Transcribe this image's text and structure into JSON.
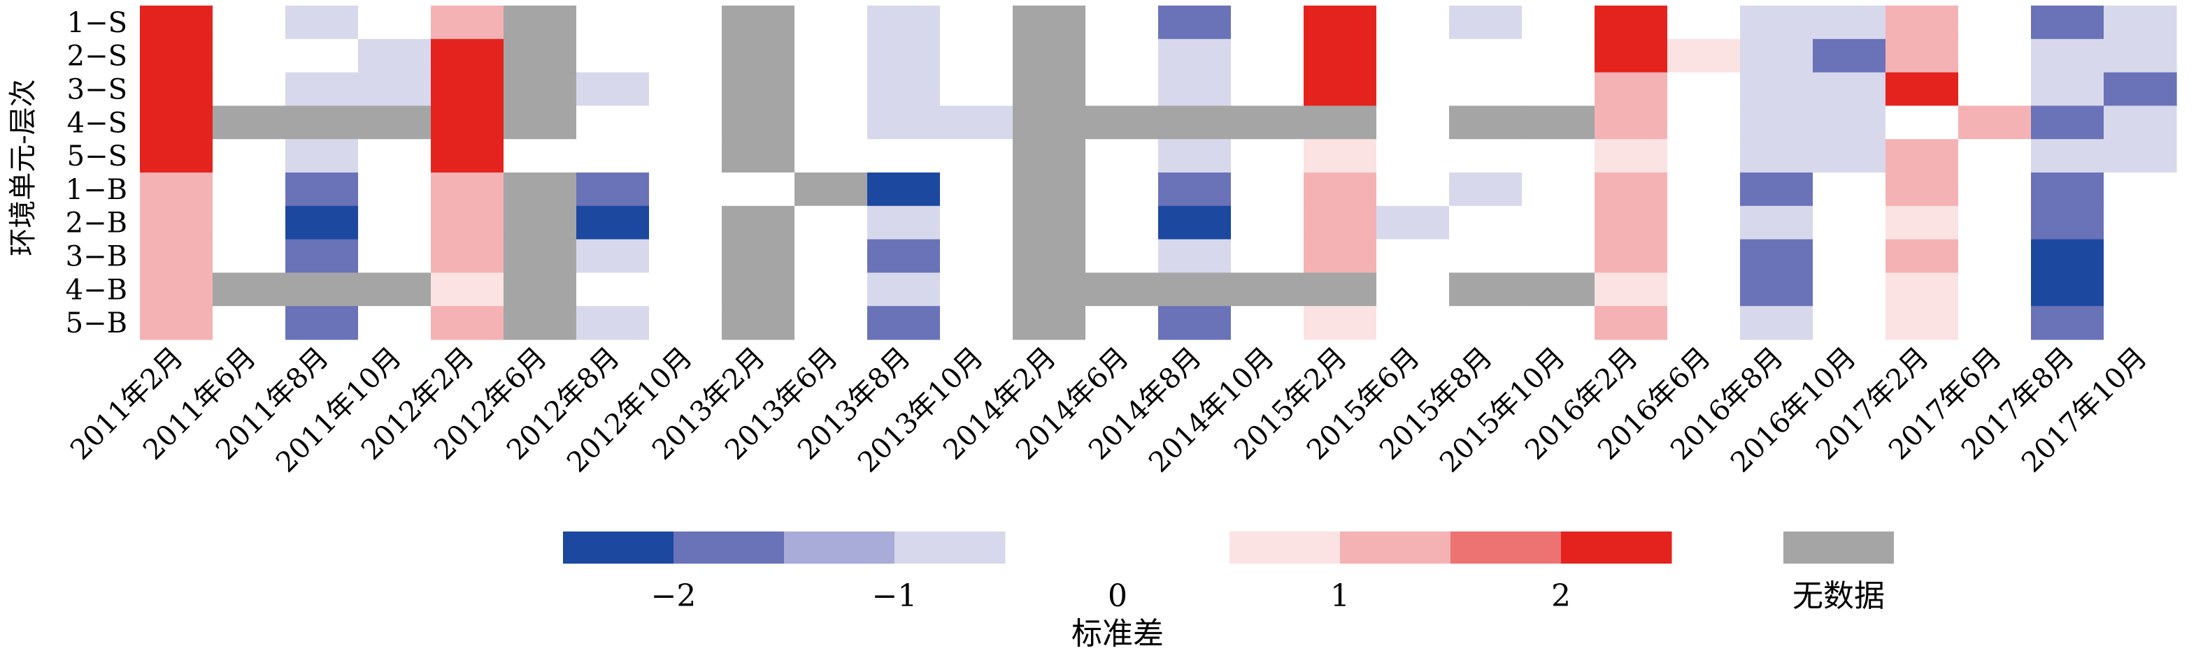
{
  "chart_data": {
    "type": "heatmap",
    "ylabel": "环境单元-层次",
    "rows": [
      "1−S",
      "2−S",
      "3−S",
      "4−S",
      "5−S",
      "1−B",
      "2−B",
      "3−B",
      "4−B",
      "5−B"
    ],
    "columns": [
      "2011年2月",
      "2011年6月",
      "2011年8月",
      "2011年10月",
      "2012年2月",
      "2012年6月",
      "2012年8月",
      "2012年10月",
      "2013年2月",
      "2013年6月",
      "2013年8月",
      "2013年10月",
      "2014年2月",
      "2014年6月",
      "2014年8月",
      "2014年10月",
      "2015年2月",
      "2015年6月",
      "2015年8月",
      "2015年10月",
      "2016年2月",
      "2016年6月",
      "2016年8月",
      "2016年10月",
      "2017年2月",
      "2017年6月",
      "2017年8月",
      "2017年10月"
    ],
    "values": [
      [
        2.5,
        0,
        -0.5,
        0,
        1.5,
        null,
        0,
        0,
        null,
        0.5,
        -0.5,
        0,
        null,
        0.5,
        -1.5,
        0,
        2.5,
        0,
        -0.5,
        0,
        2.5,
        0.5,
        -0.5,
        -0.5,
        1.5,
        0,
        -1.5,
        -0.5
      ],
      [
        2.5,
        0,
        0,
        -0.5,
        2.5,
        null,
        0,
        0,
        null,
        0.5,
        -0.5,
        0,
        null,
        0.5,
        -0.5,
        0,
        2.5,
        0,
        0,
        0.5,
        2.5,
        1.0,
        -0.5,
        -1.5,
        1.5,
        0.5,
        -0.5,
        -0.5
      ],
      [
        2.5,
        0,
        -0.5,
        -0.5,
        2.5,
        null,
        -0.5,
        0,
        null,
        0.5,
        -0.5,
        0,
        null,
        0.5,
        -0.5,
        0,
        2.5,
        0.5,
        0,
        0,
        1.5,
        0.5,
        -0.5,
        -0.5,
        2.5,
        0,
        -0.5,
        -1.5
      ],
      [
        2.5,
        null,
        null,
        null,
        2.5,
        null,
        0,
        0,
        null,
        0.5,
        -0.5,
        -0.5,
        null,
        null,
        null,
        null,
        null,
        0,
        null,
        null,
        1.5,
        0,
        -0.5,
        -0.5,
        0.5,
        1.5,
        -1.5,
        -0.5
      ],
      [
        2.5,
        0,
        -0.5,
        0,
        2.5,
        0.5,
        0,
        0,
        null,
        0,
        0,
        0,
        null,
        0,
        -0.5,
        0,
        1.0,
        0,
        0,
        0,
        1.0,
        0.5,
        -0.5,
        -0.5,
        1.5,
        0,
        -0.5,
        -0.5
      ],
      [
        1.5,
        0,
        -1.5,
        0,
        1.5,
        null,
        -1.5,
        0,
        0.5,
        null,
        -2.0,
        0,
        null,
        0.5,
        -1.5,
        0,
        1.5,
        0,
        -0.5,
        0.5,
        1.5,
        0.5,
        -1.5,
        0,
        1.5,
        0,
        -1.5,
        0
      ],
      [
        1.5,
        0,
        -2.0,
        0,
        1.5,
        null,
        -2.0,
        0,
        null,
        0.5,
        -0.5,
        0,
        null,
        0.5,
        -2.5,
        0,
        1.5,
        -0.5,
        0,
        0.5,
        1.5,
        0.5,
        -0.5,
        0,
        1.0,
        0.5,
        -1.5,
        0
      ],
      [
        1.5,
        0,
        -1.5,
        0,
        1.5,
        null,
        -0.5,
        0,
        null,
        0.5,
        -1.5,
        0,
        null,
        0.5,
        -0.5,
        0,
        1.5,
        0.5,
        0,
        0,
        1.5,
        0.5,
        -1.5,
        0,
        1.5,
        0.5,
        -2.0,
        0
      ],
      [
        1.5,
        null,
        null,
        null,
        1.0,
        null,
        0,
        0,
        null,
        0.5,
        -0.5,
        0,
        null,
        null,
        null,
        null,
        null,
        0,
        null,
        null,
        1.0,
        0.5,
        -1.5,
        0,
        1.0,
        0.5,
        -2.0,
        0
      ],
      [
        1.5,
        0,
        -1.5,
        0,
        1.5,
        null,
        -0.5,
        0,
        null,
        0.5,
        -1.5,
        0,
        null,
        0,
        -1.5,
        0,
        1.0,
        0.5,
        0,
        0,
        1.5,
        0.5,
        -0.5,
        0,
        1.0,
        0.5,
        -1.5,
        0
      ]
    ],
    "color_bins": [
      {
        "range": [
          -2.5,
          -2.0
        ],
        "color": "#1c48a0"
      },
      {
        "range": [
          -2.0,
          -1.5
        ],
        "color": "#6a72b8"
      },
      {
        "range": [
          -1.5,
          -1.0
        ],
        "color": "#a9acd8"
      },
      {
        "range": [
          -1.0,
          -0.5
        ],
        "color": "#d8d8ec"
      },
      {
        "range": [
          -0.5,
          0.5
        ],
        "color": "#ffffff"
      },
      {
        "range": [
          0.5,
          1.0
        ],
        "color": "#fbe2e3"
      },
      {
        "range": [
          1.0,
          1.5
        ],
        "color": "#f4b2b5"
      },
      {
        "range": [
          1.5,
          2.0
        ],
        "color": "#ed7272"
      },
      {
        "range": [
          2.0,
          2.5
        ],
        "color": "#e4231e"
      }
    ],
    "no_data_color": "#a5a5a5",
    "legend": {
      "ticks": [
        "−2",
        "−1",
        "0",
        "1",
        "2"
      ],
      "no_data_label": "无数据",
      "title": "标准差"
    }
  }
}
